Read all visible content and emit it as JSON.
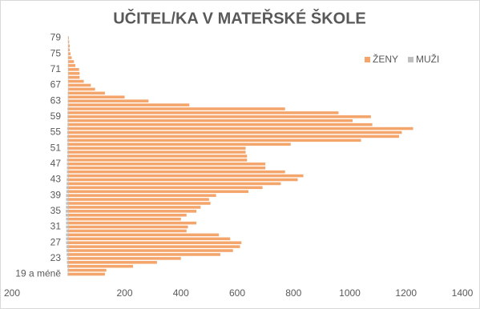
{
  "chart_data": {
    "type": "bar",
    "orientation": "horizontal",
    "stacked": true,
    "title": "UČITEL/KA V MATEŘSKÉ ŠKOLE",
    "categories": [
      "19 a méně",
      null,
      null,
      null,
      "23",
      null,
      null,
      null,
      "27",
      null,
      null,
      null,
      "31",
      null,
      null,
      null,
      "35",
      null,
      null,
      null,
      "39",
      null,
      null,
      null,
      "43",
      null,
      null,
      null,
      "47",
      null,
      null,
      null,
      "51",
      null,
      null,
      null,
      "55",
      null,
      null,
      null,
      "59",
      null,
      null,
      null,
      "63",
      null,
      null,
      null,
      "67",
      null,
      null,
      null,
      "71",
      null,
      null,
      null,
      "75",
      null,
      null,
      null,
      "79"
    ],
    "series": [
      {
        "name": "ŽENY",
        "color": "#f4a56b",
        "values": [
          130,
          135,
          230,
          315,
          400,
          540,
          585,
          610,
          615,
          575,
          535,
          420,
          425,
          455,
          400,
          420,
          455,
          470,
          505,
          500,
          525,
          640,
          690,
          755,
          815,
          835,
          770,
          700,
          700,
          635,
          635,
          630,
          630,
          790,
          1040,
          1175,
          1185,
          1225,
          1080,
          1010,
          1075,
          960,
          770,
          430,
          285,
          200,
          130,
          95,
          80,
          55,
          40,
          40,
          38,
          25,
          20,
          12,
          8,
          5,
          5,
          3,
          2
        ]
      },
      {
        "name": "MUŽI",
        "color": "#bfbfbf",
        "values": [
          -3,
          -3,
          -4,
          -5,
          -5,
          -6,
          -7,
          -7,
          -8,
          -8,
          -8,
          -7,
          -8,
          -8,
          -8,
          -9,
          -9,
          -8,
          -8,
          -8,
          -8,
          -7,
          -7,
          -6,
          -6,
          -5,
          -5,
          -5,
          -5,
          -5,
          -4,
          -4,
          -4,
          -4,
          -4,
          -4,
          -4,
          -4,
          -3,
          -3,
          -3,
          -3,
          -3,
          -2,
          -2,
          -2,
          -2,
          -1,
          -1,
          -1,
          -1,
          -1,
          -1,
          -1,
          -1,
          -1,
          -1,
          -1,
          -1,
          -1,
          -1
        ]
      }
    ],
    "xlim": [
      -200,
      1400
    ],
    "xticks": [
      {
        "value": -200,
        "label": "200"
      },
      200,
      400,
      600,
      800,
      1000,
      1200,
      1400
    ],
    "legend": "top-right",
    "grid": false
  }
}
